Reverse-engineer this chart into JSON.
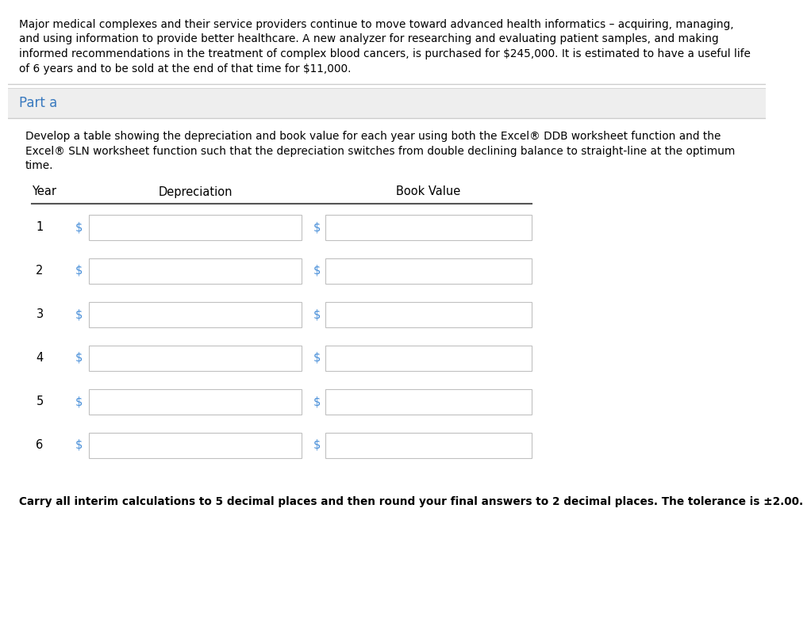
{
  "intro_text_lines": [
    "Major medical complexes and their service providers continue to move toward advanced health informatics – acquiring, managing,",
    "and using information to provide better healthcare. A new analyzer for researching and evaluating patient samples, and making",
    "informed recommendations in the treatment of complex blood cancers, is purchased for $245,000. It is estimated to have a useful life",
    "of 6 years and to be sold at the end of that time for $11,000."
  ],
  "part_label": "Part a",
  "desc_lines": [
    "Develop a table showing the depreciation and book value for each year using both the Excel® DDB worksheet function and the",
    "Excel® SLN worksheet function such that the depreciation switches from double declining balance to straight-line at the optimum",
    "time."
  ],
  "col_year": "Year",
  "col_depreciation": "Depreciation",
  "col_book_value": "Book Value",
  "years": [
    1,
    2,
    3,
    4,
    5,
    6
  ],
  "footer_text": "Carry all interim calculations to 5 decimal places and then round your final answers to 2 decimal places. The tolerance is ±2.00.",
  "bg_color": "#ffffff",
  "part_bg_color": "#eeeeee",
  "part_text_color": "#3a7abf",
  "body_text_color": "#000000",
  "dollar_color": "#4a90d9",
  "sep_line_color": "#cccccc",
  "table_line_color": "#555555",
  "input_box_border": "#c0c0c0",
  "intro_fontsize": 9.8,
  "desc_fontsize": 9.8,
  "table_fontsize": 10.5,
  "footer_fontsize": 9.8
}
